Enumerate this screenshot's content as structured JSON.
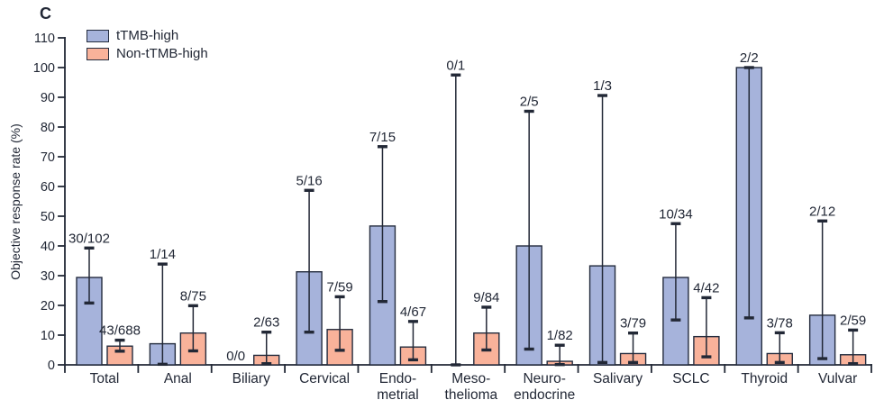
{
  "panel_label": "C",
  "colors": {
    "ttmb_high_fill": "#a6b3db",
    "non_ttmb_high_fill": "#f9b29a",
    "outline": "#242c3e",
    "text": "#222836",
    "axis": "#222836",
    "background": "#ffffff"
  },
  "legend": {
    "position": "top-left",
    "entries": [
      {
        "label": "tTMB-high",
        "color": "#a6b3db"
      },
      {
        "label": "Non-tTMB-high",
        "color": "#f9b29a"
      }
    ]
  },
  "chart_data": {
    "type": "bar",
    "title": "",
    "xlabel": "",
    "ylabel": "Objective response rate (%)",
    "ylim": [
      0,
      110
    ],
    "ytick_step": 10,
    "grid": false,
    "legend_position": "top-left",
    "error_bars": "95% CI whiskers with caps",
    "categories": [
      "Total",
      "Anal",
      "Biliary",
      "Cervical",
      "Endometrial",
      "Mesothelioma",
      "Neuroendocrine",
      "Salivary",
      "SCLC",
      "Thyroid",
      "Vulvar"
    ],
    "category_display_lines": [
      [
        "Total"
      ],
      [
        "Anal"
      ],
      [
        "Biliary"
      ],
      [
        "Cervical"
      ],
      [
        "Endo-",
        "metrial"
      ],
      [
        "Meso-",
        "thelioma"
      ],
      [
        "Neuro-",
        "endocrine"
      ],
      [
        "Salivary"
      ],
      [
        "SCLC"
      ],
      [
        "Thyroid"
      ],
      [
        "Vulvar"
      ]
    ],
    "series": [
      {
        "name": "tTMB-high",
        "color": "#a6b3db",
        "values": [
          29.4,
          7.1,
          0,
          31.3,
          46.7,
          0,
          40.0,
          33.3,
          29.4,
          100.0,
          16.7
        ],
        "labels": [
          "30/102",
          "1/14",
          "0/0",
          "5/16",
          "7/15",
          "0/1",
          "2/5",
          "1/3",
          "10/34",
          "2/2",
          "2/12"
        ],
        "ci_low": [
          20.8,
          0.2,
          null,
          11.0,
          21.3,
          0.0,
          5.3,
          0.8,
          15.1,
          15.8,
          2.1
        ],
        "ci_high": [
          39.3,
          33.9,
          null,
          58.7,
          73.4,
          97.5,
          85.3,
          90.6,
          47.5,
          100.0,
          48.4
        ]
      },
      {
        "name": "Non-tTMB-high",
        "color": "#f9b29a",
        "values": [
          6.3,
          10.7,
          3.2,
          11.9,
          6.0,
          10.7,
          1.2,
          3.8,
          9.5,
          3.8,
          3.4
        ],
        "labels": [
          "43/688",
          "8/75",
          "2/63",
          "7/59",
          "4/67",
          "9/84",
          "1/82",
          "3/79",
          "4/42",
          "3/78",
          "2/59"
        ],
        "ci_low": [
          4.6,
          4.7,
          0.4,
          4.9,
          1.7,
          5.0,
          0.1,
          0.8,
          2.7,
          0.8,
          0.4
        ],
        "ci_high": [
          8.3,
          19.9,
          11.0,
          22.9,
          14.6,
          19.4,
          6.6,
          10.7,
          22.6,
          10.8,
          11.7
        ]
      }
    ]
  }
}
